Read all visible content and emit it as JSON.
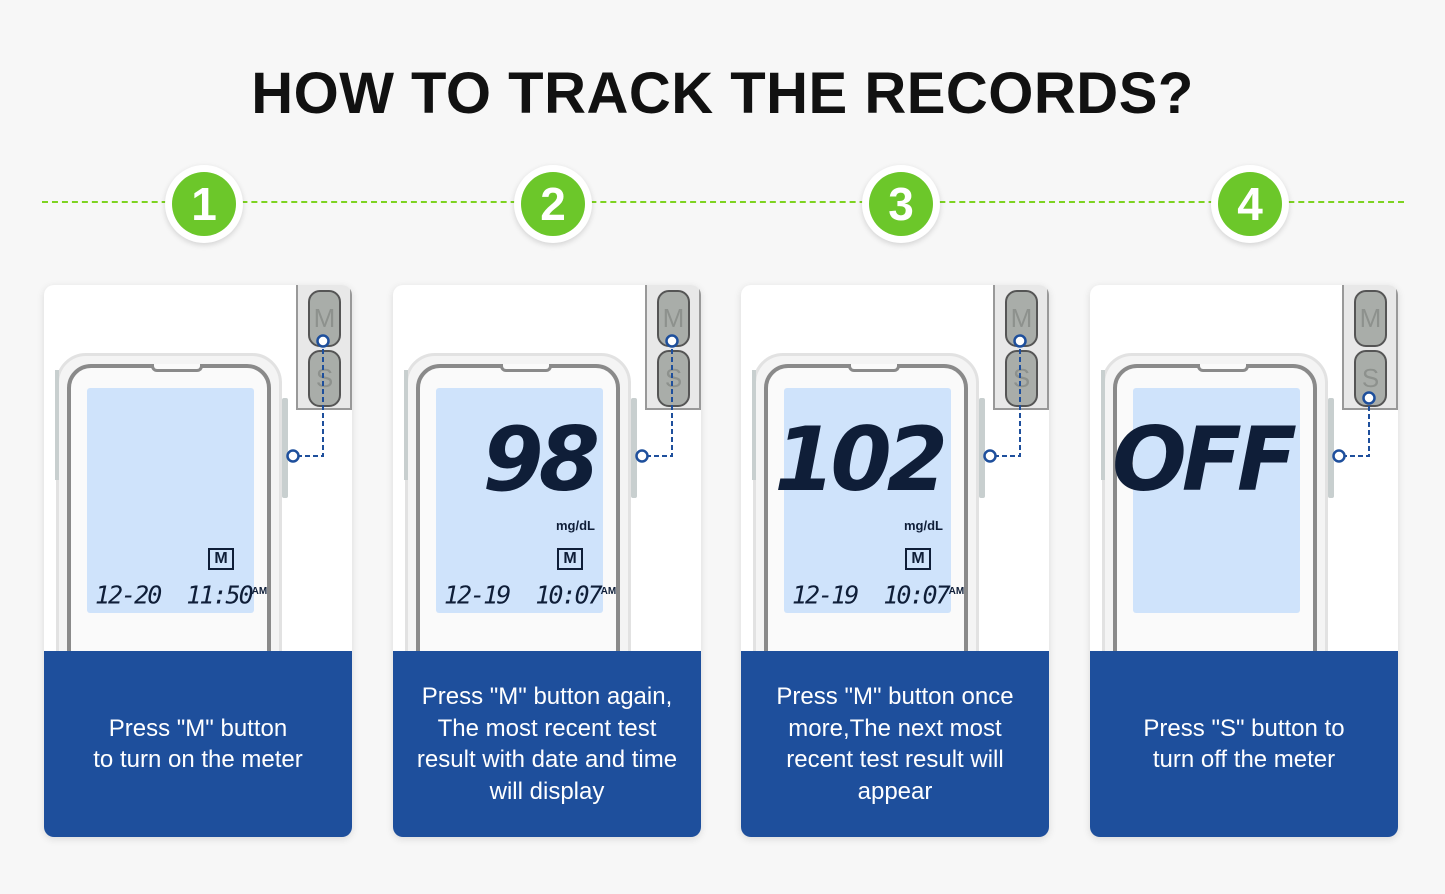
{
  "title": "HOW TO TRACK THE RECORDS?",
  "colors": {
    "accent_green": "#6cc72a",
    "caption_blue": "#1e4f9c",
    "screen": "#cfe3fb",
    "connector": "#1e4f9c"
  },
  "buttons": {
    "m": "M",
    "s": "S"
  },
  "steps": [
    {
      "number": "1",
      "pressed": "M",
      "display": "",
      "unit": "",
      "memory": "M",
      "date": "12-20",
      "time": "11:50",
      "ampm": "AM",
      "caption": "Press \"M\" button\nto turn on the meter"
    },
    {
      "number": "2",
      "pressed": "M",
      "display": "98",
      "unit": "mg/dL",
      "memory": "M",
      "date": "12-19",
      "time": "10:07",
      "ampm": "AM",
      "caption": "Press \"M\" button again,\nThe most recent test\nresult with date and time\nwill display"
    },
    {
      "number": "3",
      "pressed": "M",
      "display": "102",
      "unit": "mg/dL",
      "memory": "M",
      "date": "12-19",
      "time": "10:07",
      "ampm": "AM",
      "caption": "Press \"M\" button once\nmore,The next most\nrecent test result will\nappear"
    },
    {
      "number": "4",
      "pressed": "S",
      "display": "OFF",
      "unit": "",
      "caption": "Press \"S\" button to\nturn off the meter"
    }
  ]
}
